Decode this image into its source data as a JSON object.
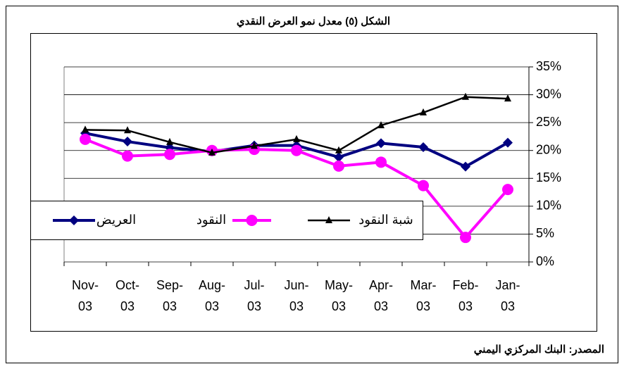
{
  "chart_data": {
    "type": "line",
    "title": "الشكل (٥) معدل نمو العرض النقدي",
    "source": "المصدر: البنك المركزي اليمني",
    "categories": [
      "Nov-03",
      "Oct-03",
      "Sep-03",
      "Aug-03",
      "Jul-03",
      "Jun-03",
      "May-03",
      "Apr-03",
      "Mar-03",
      "Feb-03",
      "Jan-03"
    ],
    "series": [
      {
        "name": "العريض",
        "color": "#000080",
        "values": [
          23.1,
          21.6,
          20.5,
          19.8,
          20.9,
          20.9,
          18.8,
          21.3,
          20.6,
          17.1,
          21.4
        ]
      },
      {
        "name": "النقود",
        "color": "#ff00ff",
        "values": [
          22.0,
          19.0,
          19.3,
          20.0,
          20.2,
          20.0,
          17.2,
          17.9,
          13.7,
          4.4,
          13.0
        ]
      },
      {
        "name": "شبة النقود",
        "color": "#000000",
        "values": [
          23.7,
          23.6,
          21.5,
          19.6,
          20.8,
          22.0,
          20.0,
          24.5,
          26.8,
          29.6,
          29.3
        ]
      }
    ],
    "ylim": [
      0,
      35
    ],
    "yticks": [
      {
        "value": 0,
        "label": "0%"
      },
      {
        "value": 5,
        "label": "5%"
      },
      {
        "value": 10,
        "label": "10%"
      },
      {
        "value": 15,
        "label": "15%"
      },
      {
        "value": 20,
        "label": "20%"
      },
      {
        "value": 25,
        "label": "25%"
      },
      {
        "value": 30,
        "label": "30%"
      },
      {
        "value": 35,
        "label": "35%"
      }
    ],
    "grid": true
  }
}
